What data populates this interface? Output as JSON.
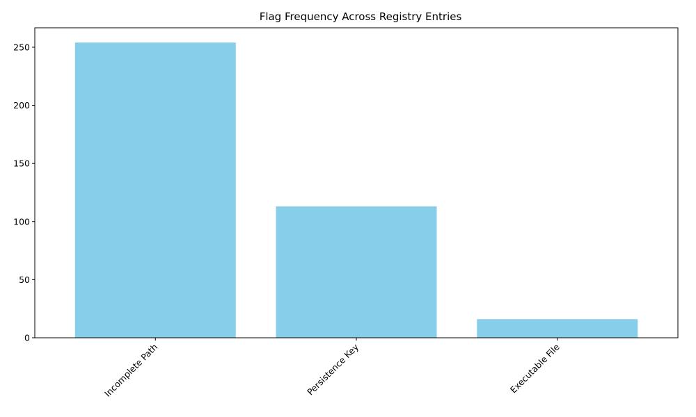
{
  "chart_data": {
    "type": "bar",
    "title": "Flag Frequency Across Registry Entries",
    "xlabel": "",
    "ylabel": "",
    "categories": [
      "Incomplete Path",
      "Persistence Key",
      "Executable File"
    ],
    "values": [
      254,
      113,
      16
    ],
    "ylim": [
      0,
      266.7
    ],
    "yticks": [
      0,
      50,
      100,
      150,
      200,
      250
    ],
    "bar_color": "#87ceeb",
    "grid": false,
    "legend": "none"
  }
}
